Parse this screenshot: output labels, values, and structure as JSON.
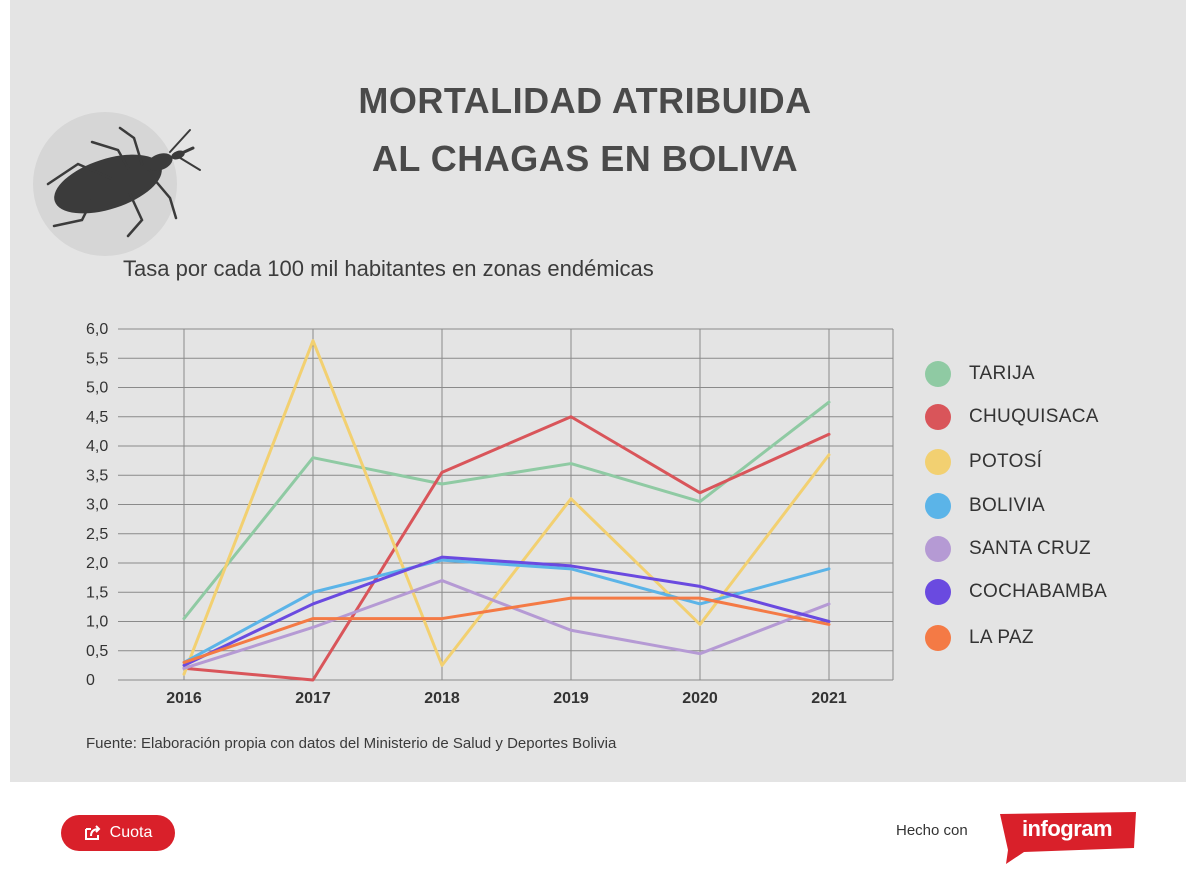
{
  "title": {
    "line1": "MORTALIDAD ATRIBUIDA",
    "line2": "AL CHAGAS EN BOLIVA"
  },
  "subtitle": "Tasa por cada 100 mil habitantes en zonas endémicas",
  "source": "Fuente: Elaboración propia con datos del Ministerio de Salud y Deportes Bolivia",
  "footer": {
    "share_label": "Cuota",
    "made_with": "Hecho con",
    "brand": "infogram"
  },
  "icons": {
    "hero": "kissing-bug-icon",
    "share": "share-icon"
  },
  "chart_data": {
    "type": "line",
    "x": [
      "2016",
      "2017",
      "2018",
      "2019",
      "2020",
      "2021"
    ],
    "y_ticks": [
      "0",
      "0,5",
      "1,0",
      "1,5",
      "2,0",
      "2,5",
      "3,0",
      "3,5",
      "4,0",
      "4,5",
      "5,0",
      "5,5",
      "6,0"
    ],
    "ylim": [
      0,
      6
    ],
    "grid": true,
    "legend_position": "right",
    "series": [
      {
        "name": "TARIJA",
        "color": "#8fcaa3",
        "values": [
          1.05,
          3.8,
          3.35,
          3.7,
          3.05,
          4.75
        ]
      },
      {
        "name": "CHUQUISACA",
        "color": "#d9555a",
        "values": [
          0.2,
          0.0,
          3.55,
          4.5,
          3.2,
          4.2
        ]
      },
      {
        "name": "POTOSÍ",
        "color": "#f2d071",
        "values": [
          0.1,
          5.8,
          0.25,
          3.1,
          0.95,
          3.85
        ]
      },
      {
        "name": "BOLIVIA",
        "color": "#5bb4e8",
        "values": [
          0.3,
          1.5,
          2.05,
          1.9,
          1.3,
          1.9
        ]
      },
      {
        "name": "SANTA CRUZ",
        "color": "#b59ad4",
        "values": [
          0.2,
          0.9,
          1.7,
          0.85,
          0.45,
          1.3
        ]
      },
      {
        "name": "COCHABAMBA",
        "color": "#6a4ae0",
        "values": [
          0.25,
          1.3,
          2.1,
          1.95,
          1.6,
          1.0
        ]
      },
      {
        "name": "LA PAZ",
        "color": "#f47a45",
        "values": [
          0.3,
          1.05,
          1.05,
          1.4,
          1.4,
          0.95
        ]
      }
    ]
  }
}
